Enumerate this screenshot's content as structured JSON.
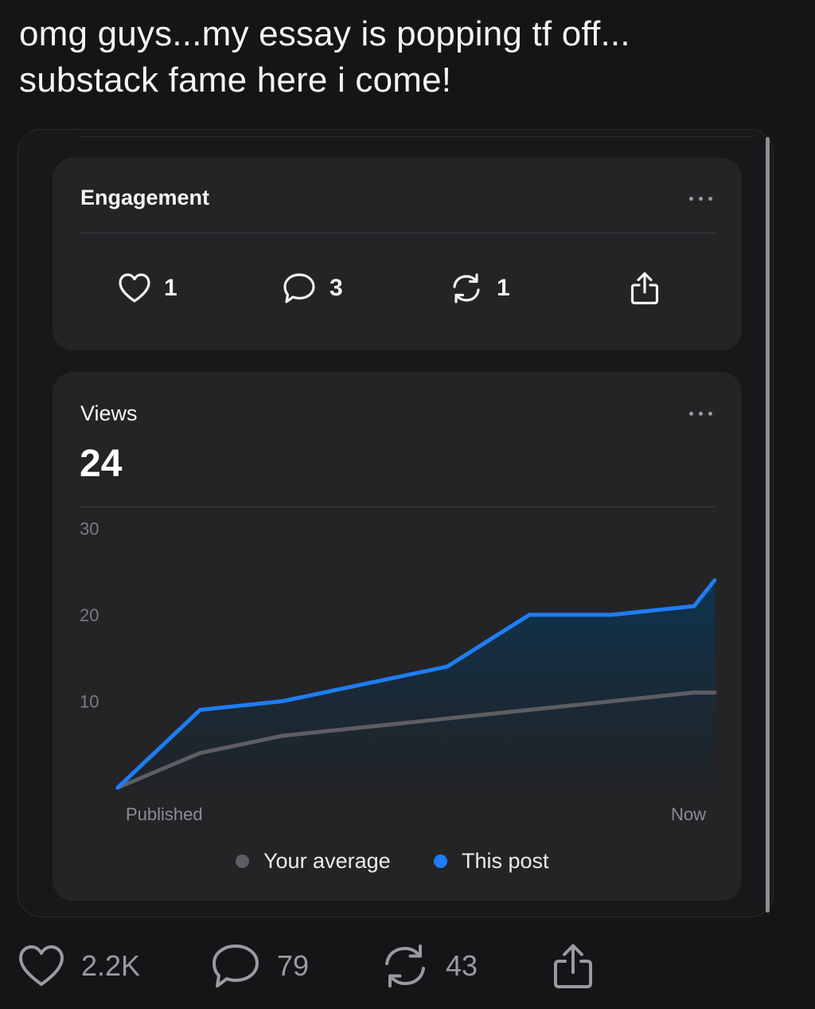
{
  "post": {
    "text_line1": "omg guys...my essay is popping tf off...",
    "text_line2": "substack fame here i come!"
  },
  "engagement": {
    "title": "Engagement",
    "stats": [
      {
        "icon": "heart-icon",
        "count": "1"
      },
      {
        "icon": "comment-icon",
        "count": "3"
      },
      {
        "icon": "restack-icon",
        "count": "1"
      },
      {
        "icon": "share-icon",
        "count": ""
      }
    ]
  },
  "views": {
    "title": "Views",
    "total": "24"
  },
  "chart_data": {
    "type": "area",
    "title": "Views",
    "x_labels": [
      "Published",
      "Now"
    ],
    "x": [
      0,
      1,
      2,
      3,
      4,
      5,
      6,
      7,
      7.25
    ],
    "yticks": [
      10,
      20,
      30
    ],
    "ylim": [
      0,
      30
    ],
    "grid": false,
    "legend_position": "bottom",
    "series": [
      {
        "name": "Your average",
        "color": "#5d5d63",
        "values": [
          0,
          4,
          6,
          7,
          8,
          9,
          10,
          11,
          11
        ]
      },
      {
        "name": "This post",
        "color": "#1f7df5",
        "values": [
          0,
          9,
          10,
          12,
          14,
          20,
          20,
          21,
          24
        ],
        "filled": true
      }
    ]
  },
  "legend": {
    "items": [
      {
        "label": "Your average",
        "color": "#5d5d63"
      },
      {
        "label": "This post",
        "color": "#1f7df5"
      }
    ]
  },
  "actions": {
    "likes": "2.2K",
    "comments": "79",
    "restacks": "43"
  },
  "colors": {
    "background": "#151517",
    "card": "#242427",
    "accent": "#1f7df5"
  }
}
